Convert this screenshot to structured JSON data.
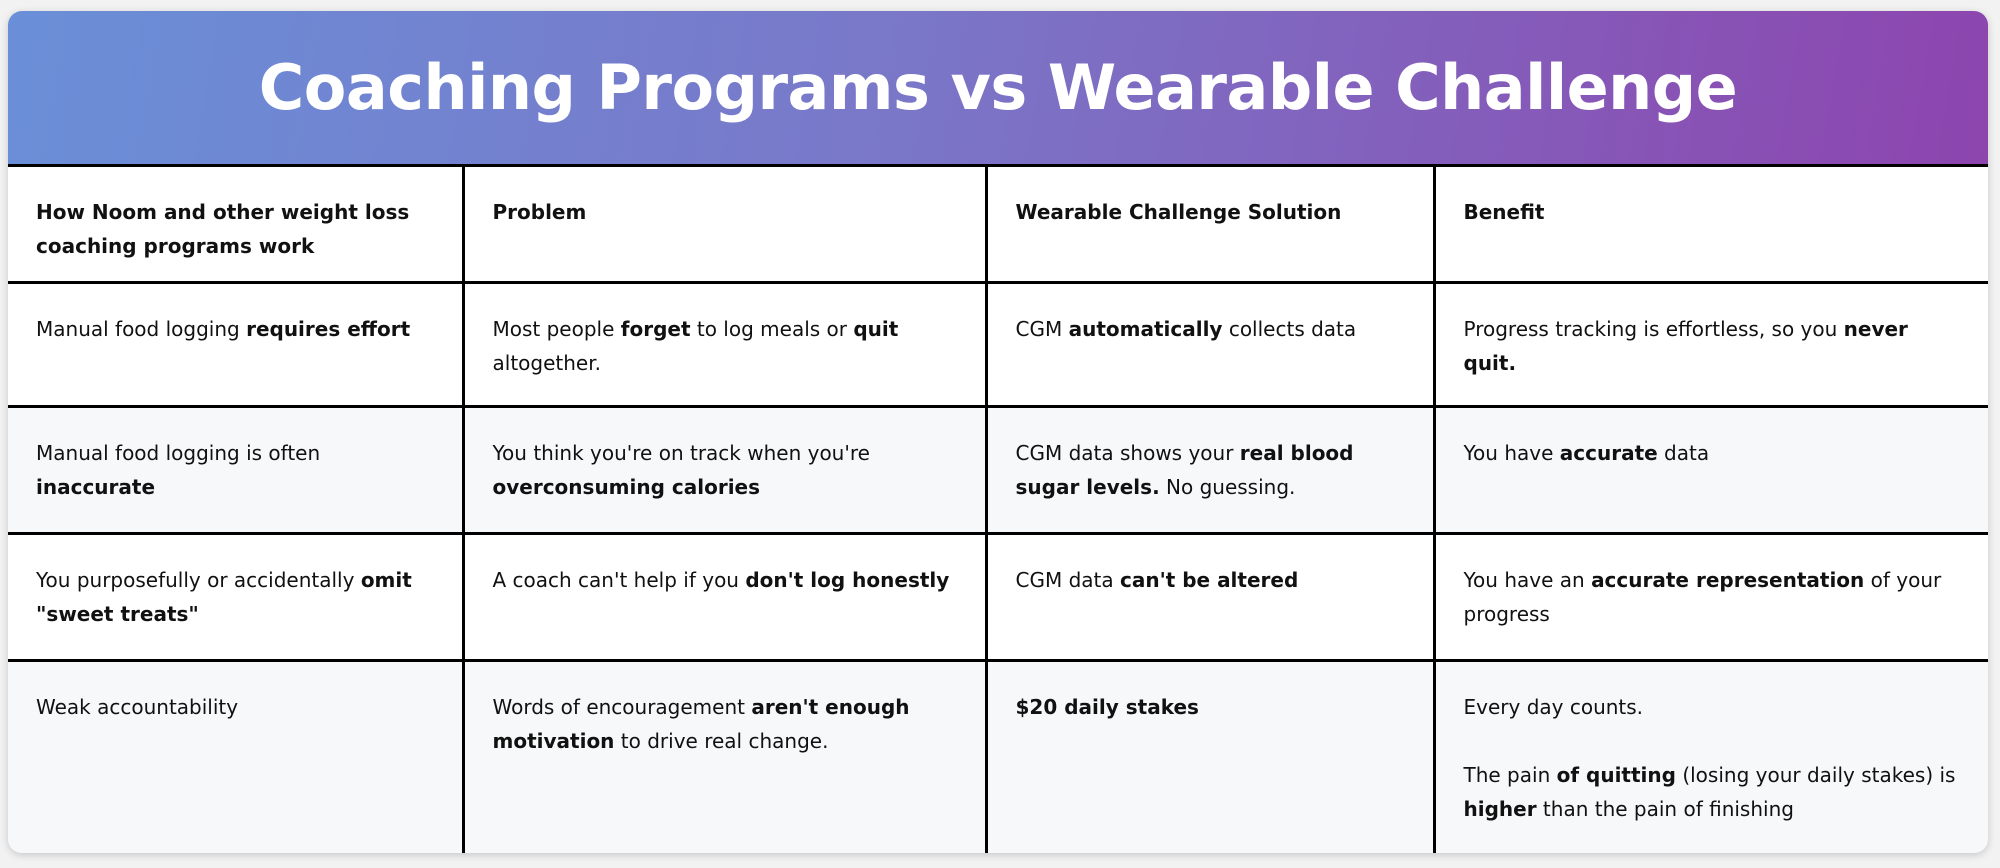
{
  "title": "Coaching Programs vs Wearable Challenge",
  "headers": [
    "How Noom and other weight loss coaching programs work",
    "Problem",
    "Wearable Challenge Solution",
    "Benefit"
  ],
  "rows": [
    [
      [
        "Manual food logging ",
        "requires effort"
      ],
      [
        "Most people ",
        "forget",
        " to log meals or ",
        "quit",
        " altogether."
      ],
      [
        "CGM ",
        "automatically",
        " collects data"
      ],
      [
        "Progress tracking is effortless, so you ",
        "never quit."
      ]
    ],
    [
      [
        "Manual food logging is often ",
        "inaccurate"
      ],
      [
        "You think you're on track when you're ",
        "overconsuming calories"
      ],
      [
        "CGM data shows your ",
        "real blood sugar levels.",
        " No guessing."
      ],
      [
        "You have ",
        "accurate",
        " data"
      ]
    ],
    [
      [
        "You purposefully or accidentally ",
        "omit \"sweet treats\""
      ],
      [
        "A coach can't help if you ",
        "don't log honestly"
      ],
      [
        "CGM data ",
        "can't be altered"
      ],
      [
        "You have an ",
        "accurate representation",
        " of your progress"
      ]
    ],
    [
      [
        "Weak accountability"
      ],
      [
        "Words of encouragement ",
        "aren't enough motivation",
        " to drive real change."
      ],
      [
        "$20 daily stakes"
      ],
      [
        "Every day counts.",
        "The pain ",
        "of quitting",
        " (losing your daily stakes) is ",
        "higher",
        " than the pain of finishing"
      ]
    ]
  ],
  "colors": {
    "gradient_start": "#6a8fd8",
    "gradient_end": "#8d45ae",
    "alt_row": "#f7f8fa"
  }
}
